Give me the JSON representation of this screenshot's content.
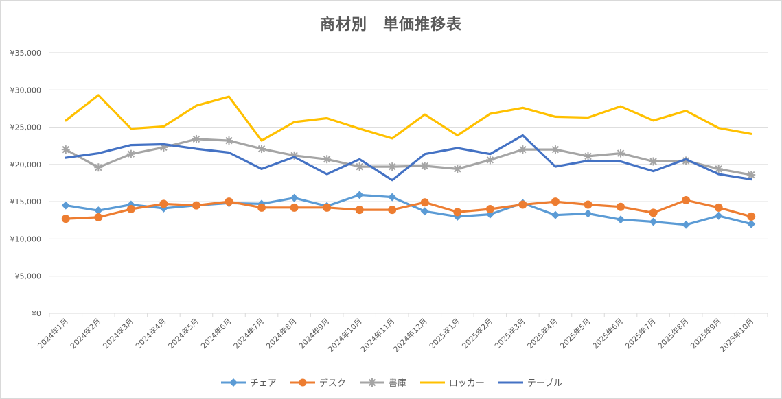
{
  "chart_data": {
    "type": "line",
    "title": "商材別　単価推移表",
    "xlabel": "",
    "ylabel": "",
    "ylim": [
      0,
      35000
    ],
    "yticks": [
      0,
      5000,
      10000,
      15000,
      20000,
      25000,
      30000,
      35000
    ],
    "ytick_labels": [
      "¥0",
      "¥5,000",
      "¥10,000",
      "¥15,000",
      "¥20,000",
      "¥25,000",
      "¥30,000",
      "¥35,000"
    ],
    "grid": true,
    "legend_position": "bottom",
    "categories": [
      "2024年1月",
      "2024年2月",
      "2024年3月",
      "2024年4月",
      "2024年5月",
      "2024年6月",
      "2024年7月",
      "2024年8月",
      "2024年9月",
      "2024年10月",
      "2024年11月",
      "2024年12月",
      "2025年1月",
      "2025年2月",
      "2025年3月",
      "2025年4月",
      "2025年5月",
      "2025年6月",
      "2025年7月",
      "2025年8月",
      "2025年9月",
      "2025年10月"
    ],
    "series": [
      {
        "name": "チェア",
        "color": "#5b9bd5",
        "marker": "diamond",
        "values": [
          14500,
          13800,
          14600,
          14100,
          14500,
          14800,
          14700,
          15500,
          14400,
          15900,
          15600,
          13700,
          13000,
          13300,
          14800,
          13200,
          13400,
          12600,
          12300,
          11900,
          13100,
          12000
        ]
      },
      {
        "name": "デスク",
        "color": "#ed7d31",
        "marker": "circle",
        "values": [
          12700,
          12900,
          14000,
          14700,
          14500,
          15000,
          14200,
          14200,
          14200,
          13900,
          13900,
          14900,
          13600,
          14000,
          14600,
          15000,
          14600,
          14300,
          13500,
          15200,
          14200,
          13000
        ]
      },
      {
        "name": "書庫",
        "color": "#a5a5a5",
        "marker": "star",
        "values": [
          22000,
          19600,
          21400,
          22300,
          23400,
          23200,
          22100,
          21200,
          20700,
          19700,
          19700,
          19800,
          19400,
          20600,
          22000,
          22000,
          21100,
          21500,
          20400,
          20500,
          19400,
          18600
        ]
      },
      {
        "name": "ロッカー",
        "color": "#ffc000",
        "marker": "none",
        "values": [
          25900,
          29300,
          24800,
          25100,
          27900,
          29100,
          23200,
          25700,
          26200,
          24800,
          23500,
          26700,
          23900,
          26800,
          27600,
          26400,
          26300,
          27800,
          25900,
          27200,
          24900,
          24100
        ]
      },
      {
        "name": "テーブル",
        "color": "#4472c4",
        "marker": "none",
        "values": [
          20900,
          21500,
          22600,
          22700,
          22100,
          21600,
          19400,
          21000,
          18700,
          20700,
          17900,
          21400,
          22200,
          21400,
          23900,
          19700,
          20500,
          20400,
          19100,
          20700,
          18700,
          18000
        ]
      }
    ]
  }
}
